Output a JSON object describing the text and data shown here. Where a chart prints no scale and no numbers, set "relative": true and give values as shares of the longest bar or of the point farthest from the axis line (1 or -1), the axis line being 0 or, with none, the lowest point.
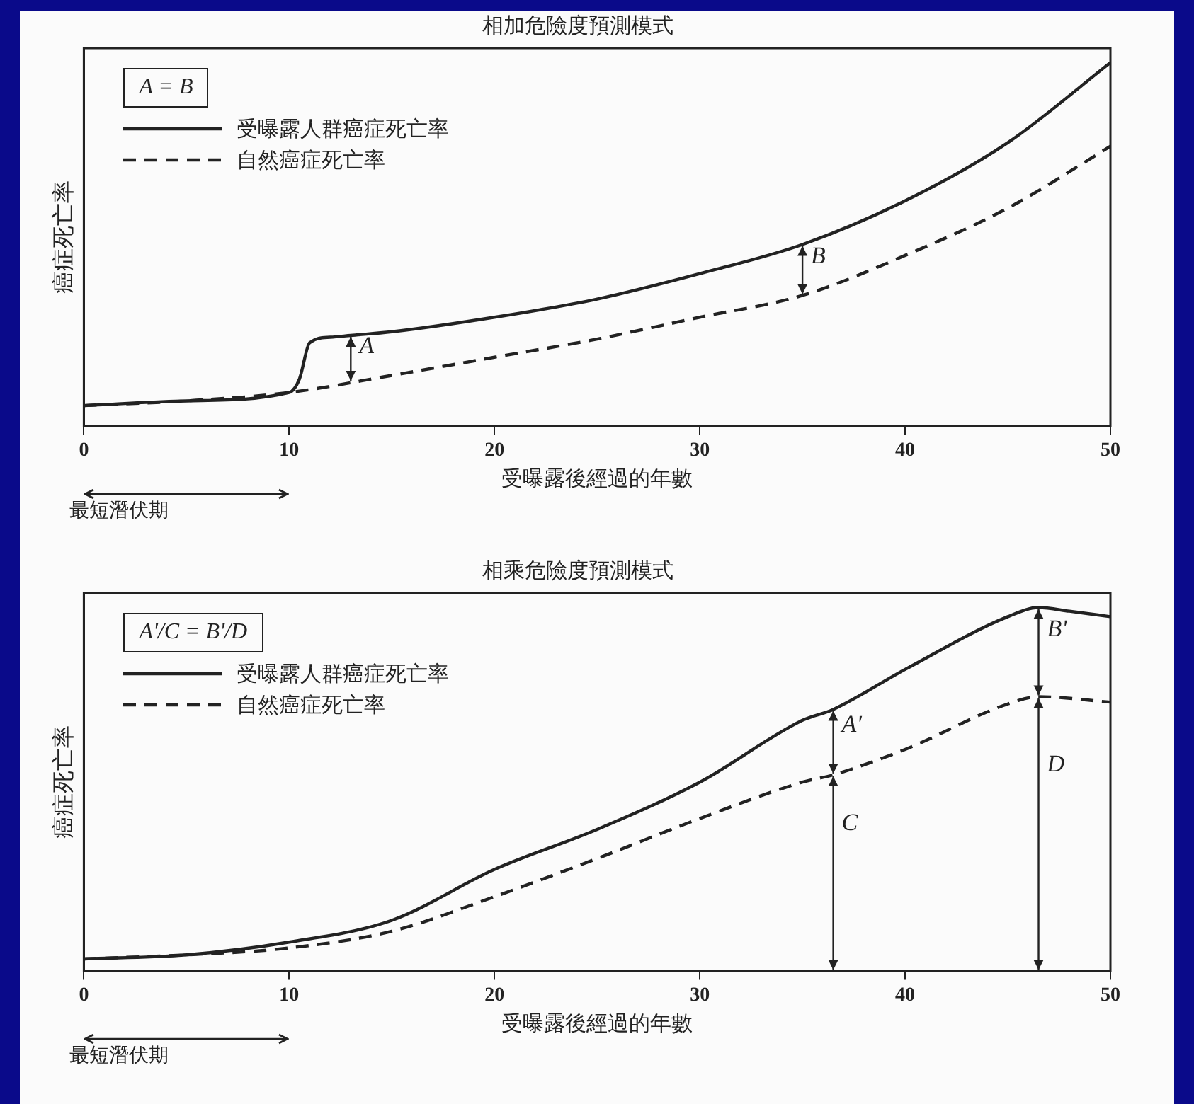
{
  "chart_data": [
    {
      "type": "line",
      "title": "相加危險度預測模式",
      "xlabel": "受曝露後經過的年數",
      "ylabel": "癌症死亡率",
      "relative": true,
      "xlim": [
        0,
        50
      ],
      "xticks": [
        0,
        10,
        20,
        30,
        40,
        50
      ],
      "grid": false,
      "legend": "top left",
      "marker": "none",
      "tick_labels": "x",
      "series": [
        {
          "name": "受曝露人群癌症死亡率",
          "color": "#222222",
          "line_style": "solid",
          "x": [
            0,
            5,
            10,
            10.5,
            11,
            12,
            13,
            15,
            20,
            25,
            30,
            35,
            40,
            45,
            50
          ],
          "values": [
            0.057,
            0.07,
            0.093,
            0.13,
            0.23,
            0.245,
            0.25,
            0.26,
            0.3,
            0.35,
            0.42,
            0.5,
            0.62,
            0.78,
            1
          ]
        },
        {
          "name": "自然癌症死亡率",
          "color": "#222222",
          "line_style": "dashed",
          "x": [
            0,
            5,
            10,
            15,
            20,
            25,
            30,
            35,
            40,
            45,
            50
          ],
          "values": [
            0.057,
            0.07,
            0.093,
            0.14,
            0.19,
            0.24,
            0.3,
            0.36,
            0.47,
            0.6,
            0.77
          ]
        }
      ],
      "annotations": [
        "A = B",
        {
          "text": "A",
          "x": 13,
          "y": 0.25
        },
        {
          "text": "B",
          "x": 35,
          "y": 0.5
        },
        "最短潛伏期"
      ]
    },
    {
      "type": "line",
      "title": "相乘危險度預測模式",
      "xlabel": "受曝露後經過的年數",
      "ylabel": "癌症死亡率",
      "relative": true,
      "xlim": [
        0,
        50
      ],
      "xticks": [
        0,
        10,
        20,
        30,
        40,
        50
      ],
      "grid": false,
      "legend": "top left",
      "marker": "none",
      "tick_labels": "x",
      "series": [
        {
          "name": "受曝露人群癌症死亡率",
          "color": "#222222",
          "line_style": "solid",
          "x": [
            0,
            5,
            10,
            15,
            20,
            25,
            30,
            35,
            36.5,
            40,
            45,
            46.5,
            48,
            50
          ],
          "values": [
            0.034,
            0.045,
            0.08,
            0.14,
            0.28,
            0.39,
            0.52,
            0.69,
            0.72,
            0.83,
            0.975,
            1,
            0.99,
            0.975
          ]
        },
        {
          "name": "自然癌症死亡率",
          "color": "#222222",
          "line_style": "dashed",
          "x": [
            0,
            5,
            10,
            15,
            20,
            25,
            30,
            35,
            36.5,
            40,
            45,
            46.5,
            50
          ],
          "values": [
            0.034,
            0.045,
            0.064,
            0.11,
            0.205,
            0.31,
            0.42,
            0.52,
            0.54,
            0.61,
            0.735,
            0.755,
            0.74
          ]
        }
      ],
      "annotations": [
        "A'/C = B'/D",
        {
          "text": "A'",
          "x": 36.5,
          "y": 0.72
        },
        {
          "text": "B'",
          "x": 46.5,
          "y": 1
        },
        {
          "text": "C",
          "x": 36.5,
          "y": 0.54
        },
        {
          "text": "D",
          "x": 46.5,
          "y": 0.755
        },
        "最短潛伏期"
      ]
    }
  ]
}
